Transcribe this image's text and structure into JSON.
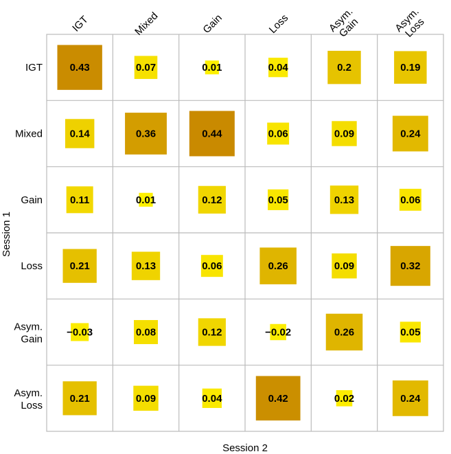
{
  "chart_data": {
    "type": "heatmap",
    "rows": [
      "IGT",
      "Mixed",
      "Gain",
      "Loss",
      "Asym. Gain",
      "Asym. Loss"
    ],
    "columns": [
      "IGT",
      "Mixed",
      "Gain",
      "Loss",
      "Asym. Gain",
      "Asym. Loss"
    ],
    "row_labels": [
      [
        "IGT"
      ],
      [
        "Mixed"
      ],
      [
        "Gain"
      ],
      [
        "Loss"
      ],
      [
        "Asym.",
        "Gain"
      ],
      [
        "Asym.",
        "Loss"
      ]
    ],
    "column_labels": [
      [
        "IGT"
      ],
      [
        "Mixed"
      ],
      [
        "Gain"
      ],
      [
        "Loss"
      ],
      [
        "Asym.",
        "Gain"
      ],
      [
        "Asym.",
        "Loss"
      ]
    ],
    "values": [
      [
        0.43,
        0.07,
        0.01,
        0.04,
        0.2,
        0.19
      ],
      [
        0.14,
        0.36,
        0.44,
        0.06,
        0.09,
        0.24
      ],
      [
        0.11,
        0.01,
        0.12,
        0.05,
        0.13,
        0.06
      ],
      [
        0.21,
        0.13,
        0.06,
        0.26,
        0.09,
        0.32
      ],
      [
        -0.03,
        0.08,
        0.12,
        -0.02,
        0.26,
        0.05
      ],
      [
        0.21,
        0.09,
        0.04,
        0.42,
        0.02,
        0.24
      ]
    ],
    "value_labels": [
      [
        "0.43",
        "0.07",
        "0.01",
        "0.04",
        "0.2",
        "0.19"
      ],
      [
        "0.14",
        "0.36",
        "0.44",
        "0.06",
        "0.09",
        "0.24"
      ],
      [
        "0.11",
        "0.01",
        "0.12",
        "0.05",
        "0.13",
        "0.06"
      ],
      [
        "0.21",
        "0.13",
        "0.06",
        "0.26",
        "0.09",
        "0.32"
      ],
      [
        "−0.03",
        "0.08",
        "0.12",
        "−0.02",
        "0.26",
        "0.05"
      ],
      [
        "0.21",
        "0.09",
        "0.04",
        "0.42",
        "0.02",
        "0.24"
      ]
    ],
    "xlabel": "Session 2",
    "ylabel": "Session 1",
    "color_low": "#FFF200",
    "color_high": "#C98A00",
    "grid_color": "#BBBBBB",
    "value_range": [
      0,
      0.44
    ]
  }
}
